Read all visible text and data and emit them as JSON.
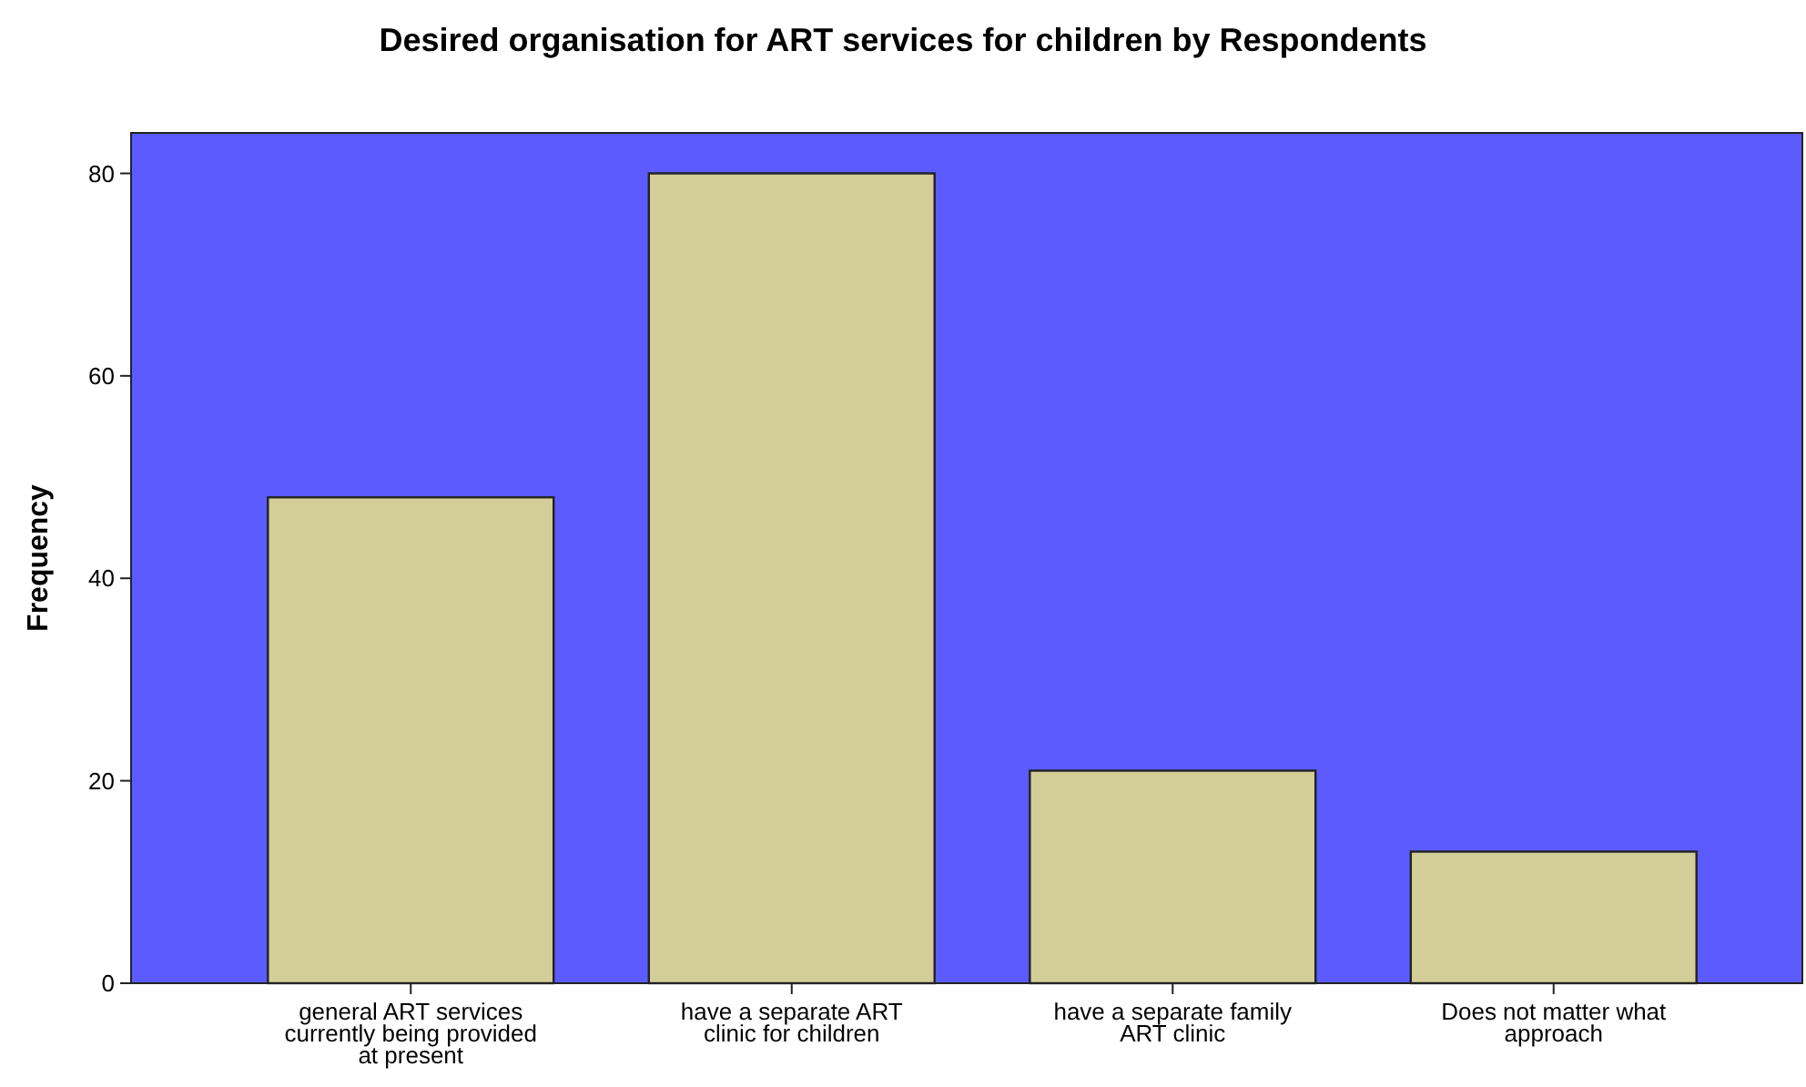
{
  "chart_data": {
    "type": "bar",
    "title": "Desired organisation for ART services for children by Respondents",
    "ylabel": "Frequency",
    "categories": [
      "general ART services currently being provided at present",
      "have a separate ART clinic for children",
      "have a separate family ART clinic",
      "Does not matter what approach"
    ],
    "values": [
      48,
      80,
      21,
      13
    ],
    "color": "#d3cd98",
    "ylim": [
      0,
      84
    ],
    "yticks": [
      0,
      20,
      40,
      60,
      80
    ]
  }
}
